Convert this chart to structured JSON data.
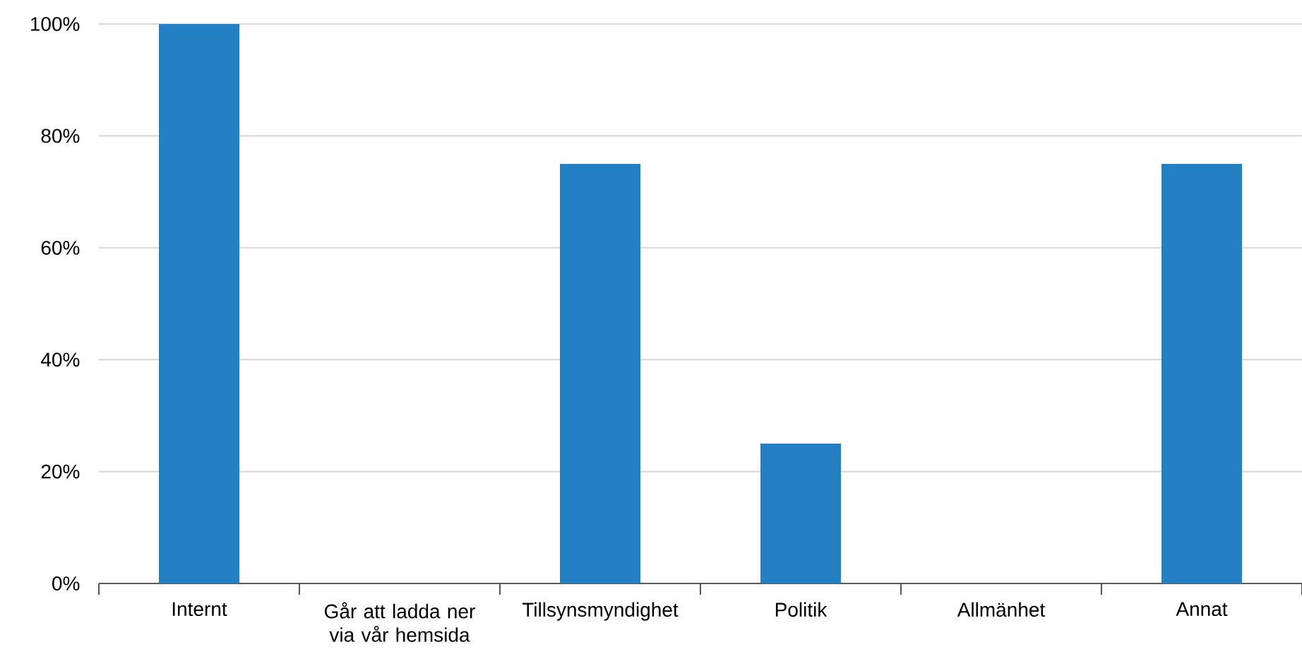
{
  "chart_data": {
    "type": "bar",
    "categories": [
      "Internt",
      "Går att ladda ner via vår hemsida",
      "Tillsynsmyndighet",
      "Politik",
      "Allmänhet",
      "Annat"
    ],
    "values": [
      100,
      0,
      75,
      25,
      0,
      75
    ],
    "color": "#2580c3",
    "ylim": [
      0,
      100
    ],
    "yticks": [
      {
        "value": 0,
        "label": "0%"
      },
      {
        "value": 20,
        "label": "20%"
      },
      {
        "value": 40,
        "label": "40%"
      },
      {
        "value": 60,
        "label": "60%"
      },
      {
        "value": 80,
        "label": "80%"
      },
      {
        "value": 100,
        "label": "100%"
      }
    ],
    "grid": "y"
  }
}
